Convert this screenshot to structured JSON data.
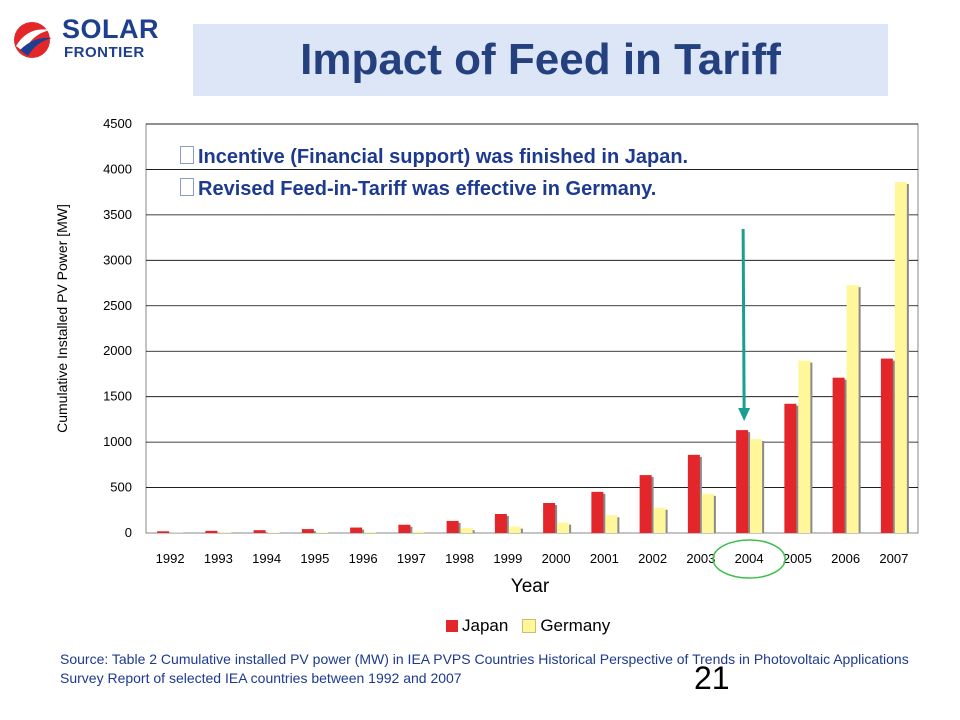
{
  "logo": {
    "line1": "SOLAR",
    "line2": "FRONTIER"
  },
  "title": "Impact of Feed in Tariff",
  "notes": [
    "Incentive (Financial support) was finished in Japan.",
    "Revised Feed-in-Tariff was effective in Germany."
  ],
  "source": "Source: Table 2 Cumulative installed PV power (MW) in IEA PVPS Countries Historical Perspective of Trends in Photovoltaic Applications Survey Report of selected IEA countries between 1992 and 2007",
  "page_number": "21",
  "colors": {
    "japan": "#e3262a",
    "germany": "#fff799",
    "arrow": "#1b9e8e",
    "highlight_circle": "#3fbf4f",
    "title_bg": "#dce6f7",
    "title_text": "#24407f"
  },
  "chart_data": {
    "type": "bar",
    "categories": [
      "1992",
      "1993",
      "1994",
      "1995",
      "1996",
      "1997",
      "1998",
      "1999",
      "2000",
      "2001",
      "2002",
      "2003",
      "2004",
      "2005",
      "2006",
      "2007"
    ],
    "series": [
      {
        "name": "Japan",
        "values": [
          19,
          24,
          31,
          43,
          60,
          91,
          133,
          209,
          330,
          453,
          637,
          860,
          1132,
          1422,
          1709,
          1919
        ]
      },
      {
        "name": "Germany",
        "values": [
          3,
          5,
          6,
          8,
          11,
          18,
          54,
          70,
          114,
          195,
          278,
          431,
          1034,
          1897,
          2727,
          3862
        ]
      }
    ],
    "xlabel": "Year",
    "ylabel": "Cumulative Installed PV Power [MW]",
    "ylim": [
      0,
      4500
    ],
    "yticks": [
      0,
      500,
      1000,
      1500,
      2000,
      2500,
      3000,
      3500,
      4000,
      4500
    ],
    "grid": true,
    "legend": "bottom",
    "annotation": {
      "arrow_to": "2004",
      "highlight": "2004"
    }
  }
}
